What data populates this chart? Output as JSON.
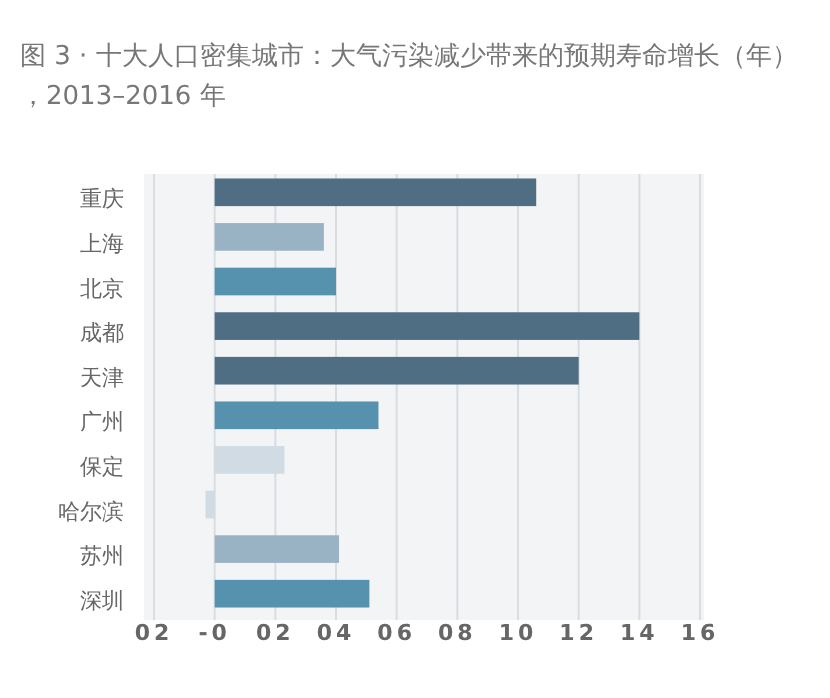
{
  "chart_data": {
    "type": "bar",
    "orientation": "horizontal",
    "title": "图 3 · 十大人口密集城市：大气污染减少带来的预期寿命增长（年），2013–2016 年",
    "categories": [
      "重庆",
      "上海",
      "北京",
      "成都",
      "天津",
      "广州",
      "保定",
      "哈尔滨",
      "苏州",
      "深圳"
    ],
    "values": [
      10.6,
      3.6,
      4.0,
      14.0,
      12.0,
      5.4,
      2.3,
      -0.3,
      4.1,
      5.1
    ],
    "colors": [
      "#4f6d83",
      "#9ab3c4",
      "#5691ae",
      "#4f6d83",
      "#4f6d83",
      "#5691ae",
      "#d0dbe4",
      "#d0dbe4",
      "#9ab3c4",
      "#5691ae"
    ],
    "xlim": [
      -2,
      16
    ],
    "xticks": [
      {
        "value": -2,
        "label": "02"
      },
      {
        "value": 0,
        "label": "-0"
      },
      {
        "value": 2,
        "label": "02"
      },
      {
        "value": 4,
        "label": "04"
      },
      {
        "value": 6,
        "label": "06"
      },
      {
        "value": 8,
        "label": "08"
      },
      10,
      12,
      14,
      16
    ],
    "grid": "x"
  }
}
